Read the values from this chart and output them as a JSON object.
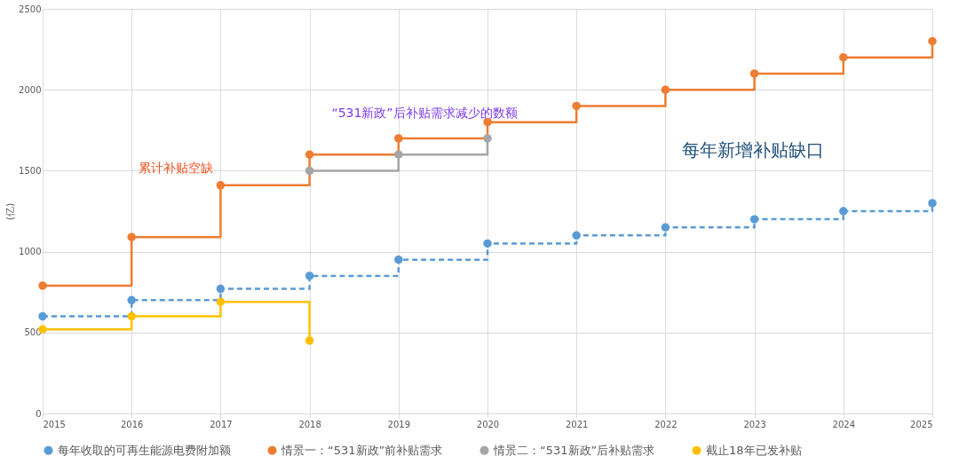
{
  "chart_data": {
    "type": "step",
    "ylabel": "(亿)",
    "x": [
      2015,
      2016,
      2017,
      2018,
      2019,
      2020,
      2021,
      2022,
      2023,
      2024,
      2025
    ],
    "series": [
      {
        "name": "每年收取的可再生能源电费附加额",
        "color": "#5b9bd5",
        "line_style": "dashed",
        "values": [
          600,
          700,
          770,
          850,
          950,
          1050,
          1100,
          1150,
          1200,
          1250,
          1300
        ]
      },
      {
        "name": "情景一：“531新政”前补贴需求",
        "color": "#ed7d31",
        "values": [
          790,
          1090,
          1410,
          1600,
          1700,
          1800,
          1900,
          2000,
          2100,
          2200,
          2300
        ]
      },
      {
        "name": "情景二：“531新政”后补贴需求",
        "color": "#a5a5a5",
        "values": [
          null,
          null,
          null,
          1500,
          1600,
          1700,
          null,
          null,
          null,
          null,
          null
        ]
      },
      {
        "name": "截止18年已发补贴",
        "color": "#ffc000",
        "values": [
          520,
          600,
          690,
          450,
          null,
          null,
          null,
          null,
          null,
          null,
          null
        ]
      }
    ],
    "xlim": [
      2015,
      2025
    ],
    "xticks": [
      2015,
      2016,
      2017,
      2018,
      2019,
      2020,
      2021,
      2022,
      2023,
      2024,
      2025
    ],
    "ylim": [
      0,
      2500
    ],
    "yticks": [
      0,
      500,
      1000,
      1500,
      2000,
      2500
    ],
    "annotations": [
      "累计补贴空缺",
      "“531新政”后补贴需求减少的数额",
      "每年新增补贴缺口"
    ],
    "grid": true,
    "legend": "bottom",
    "marker": "circle",
    "line_style": "solid"
  }
}
